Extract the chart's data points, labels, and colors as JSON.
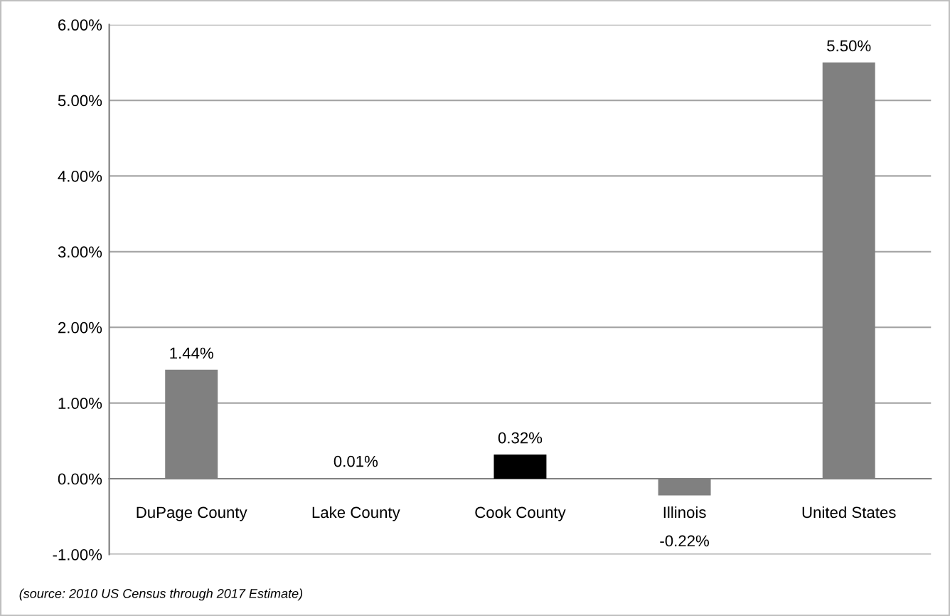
{
  "chart_data": {
    "type": "bar",
    "categories": [
      "DuPage County",
      "Lake County",
      "Cook County",
      "Illinois",
      "United States"
    ],
    "values": [
      1.44,
      0.01,
      0.32,
      -0.22,
      5.5
    ],
    "colors": [
      "#808080",
      "#808080",
      "#000000",
      "#808080",
      "#808080"
    ],
    "value_labels": [
      "1.44%",
      "0.01%",
      "0.32%",
      "-0.22%",
      "5.50%"
    ],
    "ylim": [
      -1,
      6
    ],
    "yticks": [
      {
        "value": -1,
        "label": "-1.00%"
      },
      {
        "value": 0,
        "label": "0.00%"
      },
      {
        "value": 1,
        "label": "1.00%"
      },
      {
        "value": 2,
        "label": "2.00%"
      },
      {
        "value": 3,
        "label": "3.00%"
      },
      {
        "value": 4,
        "label": "4.00%"
      },
      {
        "value": 5,
        "label": "5.00%"
      },
      {
        "value": 6,
        "label": "6.00%"
      }
    ],
    "grid": "y",
    "legend": false,
    "annotations": [
      "(source: 2010 US Census through 2017 Estimate)"
    ]
  }
}
